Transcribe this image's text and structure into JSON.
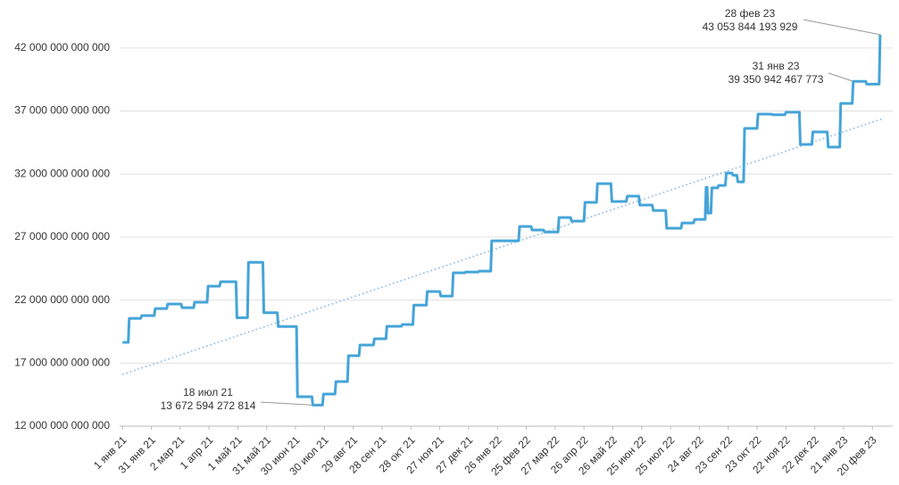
{
  "chart_data": {
    "type": "line",
    "grid": true,
    "xlim": [
      "2020-12-29",
      "2023-03-07"
    ],
    "ylim": [
      12000000000000,
      45000000000000
    ],
    "yticks": [
      {
        "value": 12000000000000,
        "label": "12 000 000 000 000"
      },
      {
        "value": 17000000000000,
        "label": "17 000 000 000 000"
      },
      {
        "value": 22000000000000,
        "label": "22 000 000 000 000"
      },
      {
        "value": 27000000000000,
        "label": "27 000 000 000 000"
      },
      {
        "value": 32000000000000,
        "label": "32 000 000 000 000"
      },
      {
        "value": 37000000000000,
        "label": "37 000 000 000 000"
      },
      {
        "value": 42000000000000,
        "label": "42 000 000 000 000"
      }
    ],
    "xticks": [
      {
        "value": "2021-01-01",
        "label": "1 янв 21"
      },
      {
        "value": "2021-01-31",
        "label": "31 янв 21"
      },
      {
        "value": "2021-03-02",
        "label": "2 мар 21"
      },
      {
        "value": "2021-04-01",
        "label": "1 апр 21"
      },
      {
        "value": "2021-05-01",
        "label": "1 май 21"
      },
      {
        "value": "2021-05-31",
        "label": "31 май 21"
      },
      {
        "value": "2021-06-30",
        "label": "30 июн 21"
      },
      {
        "value": "2021-07-30",
        "label": "30 июл 21"
      },
      {
        "value": "2021-08-29",
        "label": "29 авг 21"
      },
      {
        "value": "2021-09-28",
        "label": "28 сен 21"
      },
      {
        "value": "2021-10-28",
        "label": "28 окт 21"
      },
      {
        "value": "2021-11-27",
        "label": "27 ноя 21"
      },
      {
        "value": "2021-12-27",
        "label": "27 дек 21"
      },
      {
        "value": "2022-01-26",
        "label": "26 янв 22"
      },
      {
        "value": "2022-02-25",
        "label": "25 фев 22"
      },
      {
        "value": "2022-03-27",
        "label": "27 мар 22"
      },
      {
        "value": "2022-04-26",
        "label": "26 апр 22"
      },
      {
        "value": "2022-05-26",
        "label": "26 май 22"
      },
      {
        "value": "2022-06-25",
        "label": "25 июн 22"
      },
      {
        "value": "2022-07-25",
        "label": "25 июл 22"
      },
      {
        "value": "2022-08-24",
        "label": "24 авг 22"
      },
      {
        "value": "2022-09-23",
        "label": "23 сен 22"
      },
      {
        "value": "2022-10-23",
        "label": "23 окт 22"
      },
      {
        "value": "2022-11-22",
        "label": "22 ноя 22"
      },
      {
        "value": "2022-12-22",
        "label": "22 дек 22"
      },
      {
        "value": "2023-01-21",
        "label": "21 янв 23"
      },
      {
        "value": "2023-02-20",
        "label": "20 фев 23"
      }
    ],
    "series": [
      {
        "color": "#45a4d8",
        "x": [
          "2021-01-01",
          "2021-01-07",
          "2021-01-08",
          "2021-01-20",
          "2021-01-21",
          "2021-02-03",
          "2021-02-04",
          "2021-02-16",
          "2021-02-17",
          "2021-03-03",
          "2021-03-04",
          "2021-03-16",
          "2021-03-17",
          "2021-03-30",
          "2021-03-31",
          "2021-04-12",
          "2021-04-13",
          "2021-04-29",
          "2021-04-30",
          "2021-05-11",
          "2021-05-12",
          "2021-05-27",
          "2021-05-28",
          "2021-06-11",
          "2021-06-12",
          "2021-07-01",
          "2021-07-02",
          "2021-07-17",
          "2021-07-18",
          "2021-07-28",
          "2021-07-29",
          "2021-08-10",
          "2021-08-11",
          "2021-08-23",
          "2021-08-24",
          "2021-09-04",
          "2021-09-05",
          "2021-09-19",
          "2021-09-20",
          "2021-10-02",
          "2021-10-03",
          "2021-10-18",
          "2021-10-19",
          "2021-10-30",
          "2021-10-31",
          "2021-11-13",
          "2021-11-14",
          "2021-11-27",
          "2021-11-28",
          "2021-12-10",
          "2021-12-11",
          "2021-12-23",
          "2021-12-24",
          "2022-01-06",
          "2022-01-07",
          "2022-01-19",
          "2022-01-20",
          "2022-02-17",
          "2022-02-18",
          "2022-03-02",
          "2022-03-03",
          "2022-03-15",
          "2022-03-16",
          "2022-03-30",
          "2022-03-31",
          "2022-04-12",
          "2022-04-13",
          "2022-04-26",
          "2022-04-27",
          "2022-05-09",
          "2022-05-10",
          "2022-05-24",
          "2022-05-25",
          "2022-06-09",
          "2022-06-10",
          "2022-06-22",
          "2022-06-23",
          "2022-07-06",
          "2022-07-07",
          "2022-07-20",
          "2022-07-21",
          "2022-08-05",
          "2022-08-06",
          "2022-08-18",
          "2022-08-19",
          "2022-08-30",
          "2022-08-31",
          "2022-09-01",
          "2022-09-02",
          "2022-09-05",
          "2022-09-06",
          "2022-09-12",
          "2022-09-13",
          "2022-09-20",
          "2022-09-21",
          "2022-09-27",
          "2022-09-28",
          "2022-10-02",
          "2022-10-03",
          "2022-10-09",
          "2022-10-10",
          "2022-10-23",
          "2022-10-24",
          "2022-11-07",
          "2022-11-08",
          "2022-11-21",
          "2022-11-22",
          "2022-12-06",
          "2022-12-07",
          "2022-12-19",
          "2022-12-20",
          "2023-01-04",
          "2023-01-05",
          "2023-01-17",
          "2023-01-18",
          "2023-01-30",
          "2023-01-31",
          "2023-02-13",
          "2023-02-14",
          "2023-02-27",
          "2023-02-28"
        ],
        "values": [
          18650000000000,
          18650000000000,
          20550000000000,
          20550000000000,
          20770000000000,
          20770000000000,
          21330000000000,
          21330000000000,
          21690000000000,
          21690000000000,
          21400000000000,
          21400000000000,
          21830000000000,
          21830000000000,
          23100000000000,
          23100000000000,
          23460000000000,
          23460000000000,
          20600000000000,
          20600000000000,
          25000000000000,
          25000000000000,
          21000000000000,
          21000000000000,
          19900000000000,
          19900000000000,
          14330000000000,
          14330000000000,
          13672594272814,
          13672594272814,
          14550000000000,
          14550000000000,
          15540000000000,
          15540000000000,
          17590000000000,
          17590000000000,
          18440000000000,
          18440000000000,
          18930000000000,
          18930000000000,
          19920000000000,
          19920000000000,
          20060000000000,
          20060000000000,
          21600000000000,
          21600000000000,
          22680000000000,
          22680000000000,
          22320000000000,
          22320000000000,
          24160000000000,
          24160000000000,
          24230000000000,
          24230000000000,
          24300000000000,
          24300000000000,
          26700000000000,
          26700000000000,
          27840000000000,
          27840000000000,
          27560000000000,
          27560000000000,
          27400000000000,
          27400000000000,
          28550000000000,
          28550000000000,
          28270000000000,
          28270000000000,
          29750000000000,
          29750000000000,
          31240000000000,
          31240000000000,
          29820000000000,
          29820000000000,
          30250000000000,
          30250000000000,
          29540000000000,
          29540000000000,
          29110000000000,
          29110000000000,
          27700000000000,
          27700000000000,
          28120000000000,
          28120000000000,
          28400000000000,
          28400000000000,
          30950000000000,
          30950000000000,
          28900000000000,
          28900000000000,
          30900000000000,
          30900000000000,
          31100000000000,
          31100000000000,
          32080000000000,
          32080000000000,
          31900000000000,
          31900000000000,
          31380000000000,
          31380000000000,
          35620000000000,
          35620000000000,
          36750000000000,
          36750000000000,
          36700000000000,
          36700000000000,
          36900000000000,
          36900000000000,
          34350000000000,
          34350000000000,
          35340000000000,
          35340000000000,
          34140000000000,
          34140000000000,
          37600000000000,
          37600000000000,
          39350942467773,
          39350942467773,
          39130000000000,
          39130000000000,
          43053844193929
        ]
      }
    ],
    "trend": {
      "color": "#7fb6e2",
      "x": [
        "2021-01-01",
        "2023-03-03"
      ],
      "values": [
        16100000000000,
        36400000000000
      ]
    },
    "annotations": [
      {
        "x": "2021-07-18",
        "value": 13672594272814,
        "date_label": "18 июл 21",
        "value_label": "13 672 594 272 814"
      },
      {
        "x": "2023-01-31",
        "value": 39350942467773,
        "date_label": "31 янв 23",
        "value_label": "39 350 942 467 773"
      },
      {
        "x": "2023-02-28",
        "value": 43053844193929,
        "date_label": "28 фев 23",
        "value_label": "43 053 844 193 929"
      }
    ]
  }
}
